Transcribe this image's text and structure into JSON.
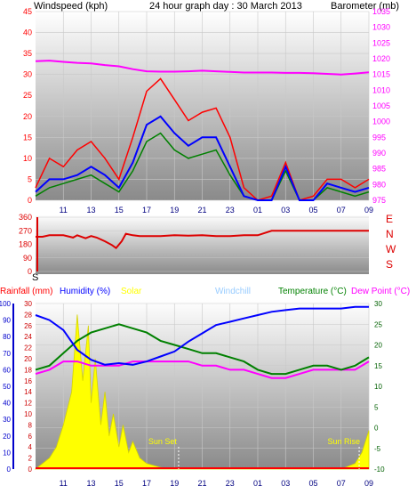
{
  "chart_data": [
    {
      "type": "line",
      "left_axis_label": "Windspeed (kph)",
      "title": "24 hour graph day : 30 March 2013",
      "right_axis_label": "Barometer (mb)",
      "ylim_left": [
        0,
        45
      ],
      "ylim_right": [
        975,
        1035
      ],
      "y_ticks_left": [
        0,
        5,
        10,
        15,
        20,
        25,
        30,
        35,
        40,
        45
      ],
      "y_ticks_right": [
        975,
        980,
        985,
        990,
        995,
        1000,
        1005,
        1010,
        1015,
        1020,
        1025,
        1030,
        1035
      ],
      "x_ticks": [
        "11",
        "13",
        "15",
        "17",
        "19",
        "21",
        "23",
        "01",
        "03",
        "05",
        "07",
        "09"
      ],
      "colors": {
        "gust": "#ff0000",
        "average": "#0000ff",
        "wind": "#008000",
        "barometer": "#ff00ff",
        "left_text": "#ff0000",
        "title_text": "#0000ff",
        "right_text": "#ff00ff"
      },
      "barometer_x": [
        9,
        10,
        11,
        12,
        13,
        14,
        15,
        16,
        17,
        18,
        19,
        20,
        21,
        22,
        23,
        24,
        25,
        26,
        27,
        28,
        29,
        30,
        31,
        32,
        33
      ],
      "barometer_mb": [
        1019.2,
        1019.4,
        1019.0,
        1018.7,
        1018.5,
        1018.0,
        1017.6,
        1016.7,
        1016.0,
        1015.9,
        1015.9,
        1016.0,
        1016.2,
        1016.0,
        1015.8,
        1015.6,
        1015.6,
        1015.6,
        1015.5,
        1015.5,
        1015.4,
        1015.2,
        1015.0,
        1015.3,
        1015.7
      ],
      "wind_x": [
        9,
        10,
        11,
        12,
        13,
        14,
        15,
        16,
        17,
        18,
        19,
        20,
        21,
        22,
        23,
        24,
        25,
        26,
        27,
        28,
        29,
        30,
        31,
        32,
        33
      ],
      "gust_kph": [
        3,
        10,
        8,
        12,
        14,
        10,
        5,
        15,
        26,
        29,
        24,
        19,
        21,
        22,
        15,
        3,
        0,
        1,
        9,
        0,
        1,
        5,
        5,
        3,
        5
      ],
      "average_kph": [
        2,
        5,
        5,
        6,
        8,
        6,
        3,
        9,
        18,
        20,
        16,
        13,
        15,
        15,
        8,
        1,
        0,
        0,
        8,
        0,
        0,
        4,
        3,
        2,
        3
      ],
      "wind_kph": [
        1,
        3,
        4,
        5,
        6,
        4,
        2,
        7,
        14,
        16,
        12,
        10,
        11,
        12,
        6,
        1,
        0,
        0,
        7,
        0,
        0,
        3,
        2,
        1,
        2
      ]
    },
    {
      "type": "line",
      "right_label_letters": [
        "E",
        "N",
        "W",
        "S"
      ],
      "left_top_letter": "S",
      "ylim": [
        0,
        360
      ],
      "y_ticks": [
        0,
        90,
        180,
        270,
        360
      ],
      "colors": {
        "direction": "#dd0000",
        "letters": "#dd0000"
      },
      "direction_x": [
        9,
        9.5,
        10,
        11,
        11.7,
        12,
        12.6,
        13,
        13.4,
        14,
        14.5,
        14.8,
        15.2,
        15.5,
        16,
        16.5,
        17,
        18,
        19,
        20,
        21,
        22,
        23,
        24,
        25,
        26,
        27,
        28,
        29,
        30,
        31,
        32,
        33
      ],
      "direction_deg": [
        230,
        230,
        240,
        240,
        225,
        240,
        220,
        235,
        225,
        200,
        175,
        155,
        200,
        250,
        240,
        235,
        235,
        235,
        240,
        238,
        240,
        235,
        235,
        240,
        240,
        270,
        270,
        270,
        270,
        270,
        270,
        270,
        270
      ]
    },
    {
      "type": "line",
      "legend": [
        {
          "name": "Rainfall (mm)",
          "color": "#ff0000"
        },
        {
          "name": "Humidity (%)",
          "color": "#0000ff"
        },
        {
          "name": "Solar",
          "color": "#ffff00"
        },
        {
          "name": "Windchill",
          "color": "#99ccff"
        },
        {
          "name": "Temperature (°C)",
          "color": "#008000"
        },
        {
          "name": "Dew Point (°C)",
          "color": "#ff00ff"
        }
      ],
      "ylim_left_outer": [
        0,
        100
      ],
      "ylim_left_inner": [
        0,
        30
      ],
      "ylim_right": [
        -10,
        30
      ],
      "y_ticks_left_outer": [
        0,
        10,
        20,
        30,
        40,
        50,
        60,
        70,
        80,
        90,
        100
      ],
      "y_ticks_left_inner": [
        0,
        2,
        4,
        6,
        8,
        10,
        12,
        14,
        16,
        18,
        20,
        22,
        24,
        26,
        28,
        30
      ],
      "y_ticks_right": [
        -10,
        -5,
        0,
        5,
        10,
        15,
        20,
        25,
        30
      ],
      "x_ticks": [
        "11",
        "13",
        "15",
        "17",
        "19",
        "21",
        "23",
        "01",
        "03",
        "05",
        "07",
        "09"
      ],
      "annotations": [
        "Sun Set",
        "Sun Rise"
      ],
      "x": [
        9,
        10,
        11,
        12,
        13,
        14,
        15,
        16,
        17,
        18,
        19,
        20,
        21,
        22,
        23,
        24,
        25,
        26,
        27,
        28,
        29,
        30,
        31,
        32,
        33
      ],
      "humidity_pct": [
        93,
        90,
        84,
        72,
        66,
        63,
        64,
        63,
        65,
        68,
        71,
        77,
        82,
        87,
        89,
        91,
        93,
        95,
        96,
        97,
        97,
        97,
        97,
        98,
        98
      ],
      "temperature_c": [
        14,
        15,
        18,
        21,
        23,
        24,
        25,
        24,
        23,
        21,
        20,
        19,
        18,
        18,
        17,
        16,
        14,
        13,
        13,
        14,
        15,
        15,
        14,
        15,
        17
      ],
      "dew_point_c": [
        13,
        14,
        16,
        16,
        15,
        15,
        15,
        16,
        16,
        16,
        16,
        16,
        15,
        15,
        14,
        14,
        13,
        12,
        12,
        13,
        14,
        14,
        14,
        14,
        16
      ],
      "solar_x": [
        9,
        10,
        10.5,
        11,
        11.6,
        12,
        12.4,
        12.8,
        13,
        13.3,
        13.7,
        14,
        14.3,
        14.6,
        15,
        15.3,
        15.7,
        16,
        16.5,
        17,
        18,
        19,
        20,
        21,
        22,
        23,
        24,
        25,
        26,
        27,
        28,
        29,
        30,
        31,
        32,
        32.5,
        33
      ],
      "solar_level": [
        0,
        2,
        4,
        8,
        14,
        28,
        16,
        26,
        12,
        20,
        8,
        14,
        6,
        10,
        4,
        8,
        3,
        5,
        2,
        1,
        0.3,
        0,
        0,
        0,
        0,
        0,
        0,
        0,
        0,
        0,
        0,
        0,
        0,
        0,
        1,
        3,
        7
      ]
    }
  ]
}
